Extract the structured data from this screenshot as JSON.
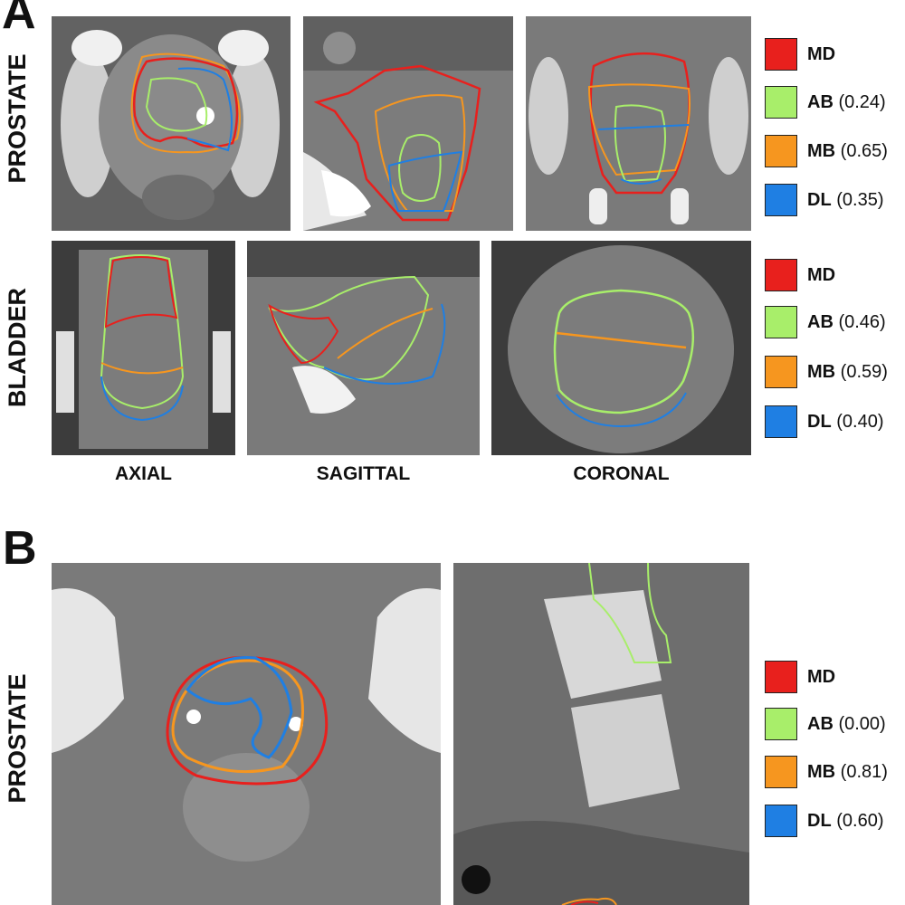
{
  "panels": {
    "a": {
      "letter": "A",
      "row_labels": {
        "prostate": "PROSTATE",
        "bladder": "BLADDER"
      },
      "col_labels": {
        "axial": "AXIAL",
        "sagittal": "SAGITTAL",
        "coronal": "CORONAL"
      },
      "legend_prostate": [
        {
          "code": "MD",
          "value": "",
          "color": "#e8201d"
        },
        {
          "code": "AB",
          "value": "(0.24)",
          "color": "#a8ee6a"
        },
        {
          "code": "MB",
          "value": "(0.65)",
          "color": "#f6961f"
        },
        {
          "code": "DL",
          "value": "(0.35)",
          "color": "#1f7fe3"
        }
      ],
      "legend_bladder": [
        {
          "code": "MD",
          "value": "",
          "color": "#e8201d"
        },
        {
          "code": "AB",
          "value": "(0.46)",
          "color": "#a8ee6a"
        },
        {
          "code": "MB",
          "value": "(0.59)",
          "color": "#f6961f"
        },
        {
          "code": "DL",
          "value": "(0.40)",
          "color": "#1f7fe3"
        }
      ]
    },
    "b": {
      "letter": "B",
      "row_label": "PROSTATE",
      "legend": [
        {
          "code": "MD",
          "value": "",
          "color": "#e8201d"
        },
        {
          "code": "AB",
          "value": "(0.00)",
          "color": "#a8ee6a"
        },
        {
          "code": "MB",
          "value": "(0.81)",
          "color": "#f6961f"
        },
        {
          "code": "DL",
          "value": "(0.60)",
          "color": "#1f7fe3"
        }
      ]
    }
  },
  "colors": {
    "md": "#e8201d",
    "ab": "#a8ee6a",
    "mb": "#f6961f",
    "dl": "#1f7fe3",
    "ct_tissue": "#7a7a7a",
    "ct_bone": "#f2f2f2",
    "ct_fat": "#3c3c3c"
  }
}
